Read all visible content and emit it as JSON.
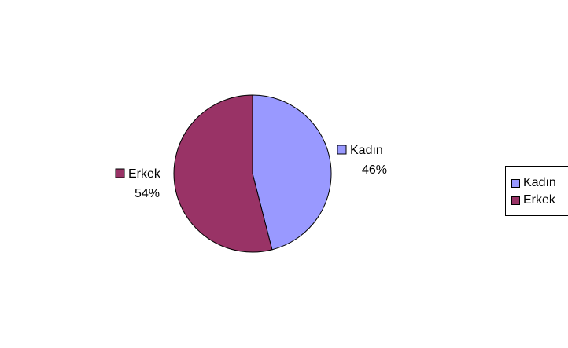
{
  "chart_data": {
    "type": "pie",
    "categories": [
      "Kadın",
      "Erkek"
    ],
    "values": [
      46,
      54
    ],
    "data_labels": [
      "46%",
      "54%"
    ],
    "colors": [
      "#9999FF",
      "#993366"
    ],
    "legend": {
      "placement": "right",
      "entries": [
        "Kadın",
        "Erkek"
      ]
    },
    "start_angle": "12 o'clock",
    "direction": "clockwise"
  }
}
